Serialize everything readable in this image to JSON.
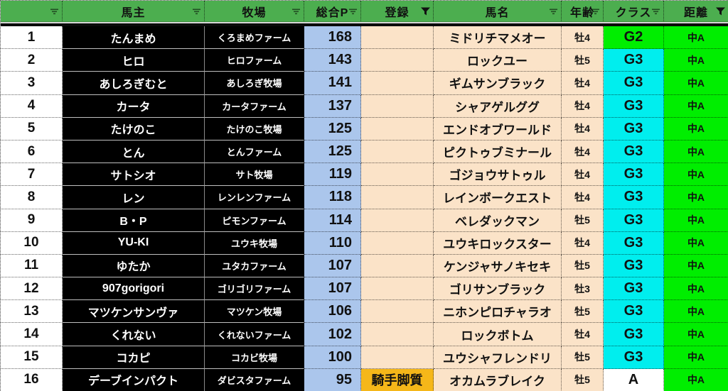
{
  "colors": {
    "header_green": "#4cae4f",
    "owner_farm_black": "#000000",
    "points_blue": "#abc6ec",
    "data_peach": "#fbe3c8",
    "class_g2_green": "#00ee00",
    "class_g3_cyan": "#00eeee",
    "class_a_white": "#ffffff",
    "distance_green": "#00ee00",
    "reg_orange": "#f5b719"
  },
  "header": {
    "columns": [
      {
        "label": "",
        "icon": "filter-dropdown"
      },
      {
        "label": "馬主",
        "icon": "filter-dropdown"
      },
      {
        "label": "牧場",
        "icon": "filter-dropdown"
      },
      {
        "label": "総合P",
        "icon": "filter-dropdown"
      },
      {
        "label": "登録",
        "icon": "filter-funnel"
      },
      {
        "label": "馬名",
        "icon": "filter-dropdown"
      },
      {
        "label": "年齢",
        "icon": "filter-dropdown"
      },
      {
        "label": "クラス",
        "icon": "filter-dropdown"
      },
      {
        "label": "距離",
        "icon": "filter-funnel"
      }
    ]
  },
  "rows": [
    {
      "rank": "1",
      "owner": "たんまめ",
      "farm": "くろまめファーム",
      "points": "168",
      "reg": "",
      "reg_bg": "#fbe3c8",
      "horse": "ミドリチマメオー",
      "age": "牡4",
      "cls": "G2",
      "cls_bg": "#00ee00",
      "dist": "中A"
    },
    {
      "rank": "2",
      "owner": "ヒロ",
      "farm": "ヒロファーム",
      "points": "143",
      "reg": "",
      "reg_bg": "#fbe3c8",
      "horse": "ロックユー",
      "age": "牡5",
      "cls": "G3",
      "cls_bg": "#00eeee",
      "dist": "中A"
    },
    {
      "rank": "3",
      "owner": "あしろぎむと",
      "farm": "あしろぎ牧場",
      "points": "141",
      "reg": "",
      "reg_bg": "#fbe3c8",
      "horse": "ギムサンブラック",
      "age": "牡4",
      "cls": "G3",
      "cls_bg": "#00eeee",
      "dist": "中A"
    },
    {
      "rank": "4",
      "owner": "カータ",
      "farm": "カータファーム",
      "points": "137",
      "reg": "",
      "reg_bg": "#fbe3c8",
      "horse": "シャアゲルググ",
      "age": "牡4",
      "cls": "G3",
      "cls_bg": "#00eeee",
      "dist": "中A"
    },
    {
      "rank": "5",
      "owner": "たけのこ",
      "farm": "たけのこ牧場",
      "points": "125",
      "reg": "",
      "reg_bg": "#fbe3c8",
      "horse": "エンドオブワールド",
      "age": "牡4",
      "cls": "G3",
      "cls_bg": "#00eeee",
      "dist": "中A"
    },
    {
      "rank": "6",
      "owner": "とん",
      "farm": "とんファーム",
      "points": "125",
      "reg": "",
      "reg_bg": "#fbe3c8",
      "horse": "ピクトゥブミナール",
      "age": "牡4",
      "cls": "G3",
      "cls_bg": "#00eeee",
      "dist": "中A"
    },
    {
      "rank": "7",
      "owner": "サトシオ",
      "farm": "サト牧場",
      "points": "119",
      "reg": "",
      "reg_bg": "#fbe3c8",
      "horse": "ゴジョウサトゥル",
      "age": "牡4",
      "cls": "G3",
      "cls_bg": "#00eeee",
      "dist": "中A"
    },
    {
      "rank": "8",
      "owner": "レン",
      "farm": "レンレンファーム",
      "points": "118",
      "reg": "",
      "reg_bg": "#fbe3c8",
      "horse": "レインボークエスト",
      "age": "牡4",
      "cls": "G3",
      "cls_bg": "#00eeee",
      "dist": "中A"
    },
    {
      "rank": "9",
      "owner": "B・P",
      "farm": "ピモンファーム",
      "points": "114",
      "reg": "",
      "reg_bg": "#fbe3c8",
      "horse": "ベレダックマン",
      "age": "牡5",
      "cls": "G3",
      "cls_bg": "#00eeee",
      "dist": "中A"
    },
    {
      "rank": "10",
      "owner": "YU-KI",
      "farm": "ユウキ牧場",
      "points": "110",
      "reg": "",
      "reg_bg": "#fbe3c8",
      "horse": "ユウキロックスター",
      "age": "牡4",
      "cls": "G3",
      "cls_bg": "#00eeee",
      "dist": "中A"
    },
    {
      "rank": "11",
      "owner": "ゆたか",
      "farm": "ユタカファーム",
      "points": "107",
      "reg": "",
      "reg_bg": "#fbe3c8",
      "horse": "ケンジャサノキセキ",
      "age": "牡5",
      "cls": "G3",
      "cls_bg": "#00eeee",
      "dist": "中A"
    },
    {
      "rank": "12",
      "owner": "907gorigori",
      "farm": "ゴリゴリファーム",
      "points": "107",
      "reg": "",
      "reg_bg": "#fbe3c8",
      "horse": "ゴリサンブラック",
      "age": "牡3",
      "cls": "G3",
      "cls_bg": "#00eeee",
      "dist": "中A"
    },
    {
      "rank": "13",
      "owner": "マツケンサンヴァ",
      "farm": "マツケン牧場",
      "points": "106",
      "reg": "",
      "reg_bg": "#fbe3c8",
      "horse": "ニホンピロチャラオ",
      "age": "牡5",
      "cls": "G3",
      "cls_bg": "#00eeee",
      "dist": "中A"
    },
    {
      "rank": "14",
      "owner": "くれない",
      "farm": "くれないファーム",
      "points": "102",
      "reg": "",
      "reg_bg": "#fbe3c8",
      "horse": "ロックボトム",
      "age": "牡4",
      "cls": "G3",
      "cls_bg": "#00eeee",
      "dist": "中A"
    },
    {
      "rank": "15",
      "owner": "コカピ",
      "farm": "コカビ牧場",
      "points": "100",
      "reg": "",
      "reg_bg": "#fbe3c8",
      "horse": "ユウシャフレンドリ",
      "age": "牡5",
      "cls": "G3",
      "cls_bg": "#00eeee",
      "dist": "中A"
    },
    {
      "rank": "16",
      "owner": "デーブインパクト",
      "farm": "ダビスタファーム",
      "points": "95",
      "reg": "騎手脚質",
      "reg_bg": "#f5b719",
      "horse": "オカムラブレイク",
      "age": "牡5",
      "cls": "A",
      "cls_bg": "#ffffff",
      "dist": "中A"
    }
  ]
}
